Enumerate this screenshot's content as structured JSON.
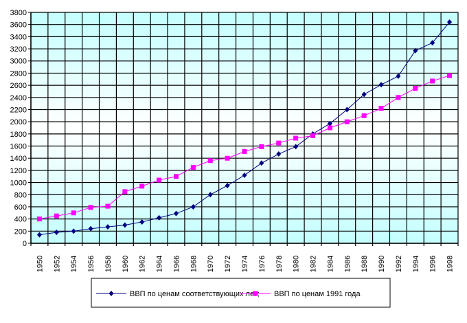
{
  "chart_data": {
    "type": "line",
    "title": "",
    "xlabel": "",
    "ylabel": "",
    "x": [
      "1950",
      "1952",
      "1954",
      "1956",
      "1958",
      "1960",
      "1962",
      "1964",
      "1966",
      "1968",
      "1970",
      "1972",
      "1974",
      "1976",
      "1978",
      "1980",
      "1982",
      "1984",
      "1986",
      "1988",
      "1990",
      "1992",
      "1994",
      "1996",
      "1998"
    ],
    "ylim": [
      0,
      3800
    ],
    "ytick_step": 200,
    "grid": true,
    "legend_position": "bottom",
    "series": [
      {
        "name": "ВВП по ценам соответствующих лет;",
        "color": "#000080",
        "marker": "diamond",
        "values": [
          140,
          180,
          200,
          240,
          270,
          300,
          350,
          420,
          490,
          600,
          800,
          950,
          1120,
          1320,
          1470,
          1590,
          1800,
          1970,
          2200,
          2450,
          2610,
          2750,
          3170,
          3300,
          3640
        ]
      },
      {
        "name": "ВВП по ценам 1991 года",
        "color": "#FF00FF",
        "marker": "square",
        "values": [
          400,
          450,
          500,
          590,
          610,
          850,
          940,
          1040,
          1100,
          1250,
          1360,
          1400,
          1510,
          1590,
          1650,
          1730,
          1770,
          1900,
          2000,
          2100,
          2220,
          2400,
          2550,
          2670,
          2760
        ]
      }
    ]
  }
}
